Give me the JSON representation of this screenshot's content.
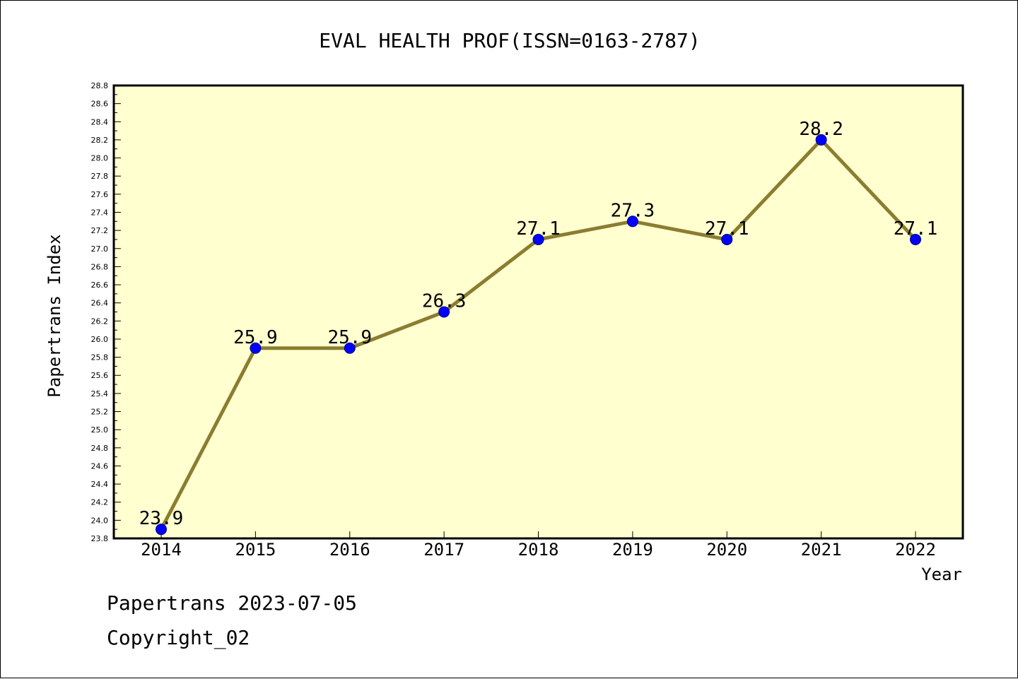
{
  "chart_data": {
    "type": "line",
    "title": "EVAL HEALTH PROF(ISSN=0163-2787)",
    "xlabel": "Year",
    "ylabel": "Papertrans Index",
    "x": [
      2014,
      2015,
      2016,
      2017,
      2018,
      2019,
      2020,
      2021,
      2022
    ],
    "series": [
      {
        "values": [
          23.9,
          25.9,
          25.9,
          26.3,
          27.1,
          27.3,
          27.1,
          28.2,
          27.1
        ],
        "labels": [
          "23.9",
          "25.9",
          "25.9",
          "26.3",
          "27.1",
          "27.3",
          "27.1",
          "28.2",
          "27.1"
        ]
      }
    ],
    "ylim": [
      23.8,
      28.8
    ],
    "ytick_step": 0.2,
    "grid": false,
    "legend": "none",
    "colors": {
      "plot_background": "#ffffd0",
      "line": "#8b7d30",
      "marker": "#0000ff",
      "marker_edge": "#000080"
    }
  },
  "footer": {
    "date_line": "Papertrans 2023-07-05",
    "copyright_line": "Copyright_02"
  }
}
